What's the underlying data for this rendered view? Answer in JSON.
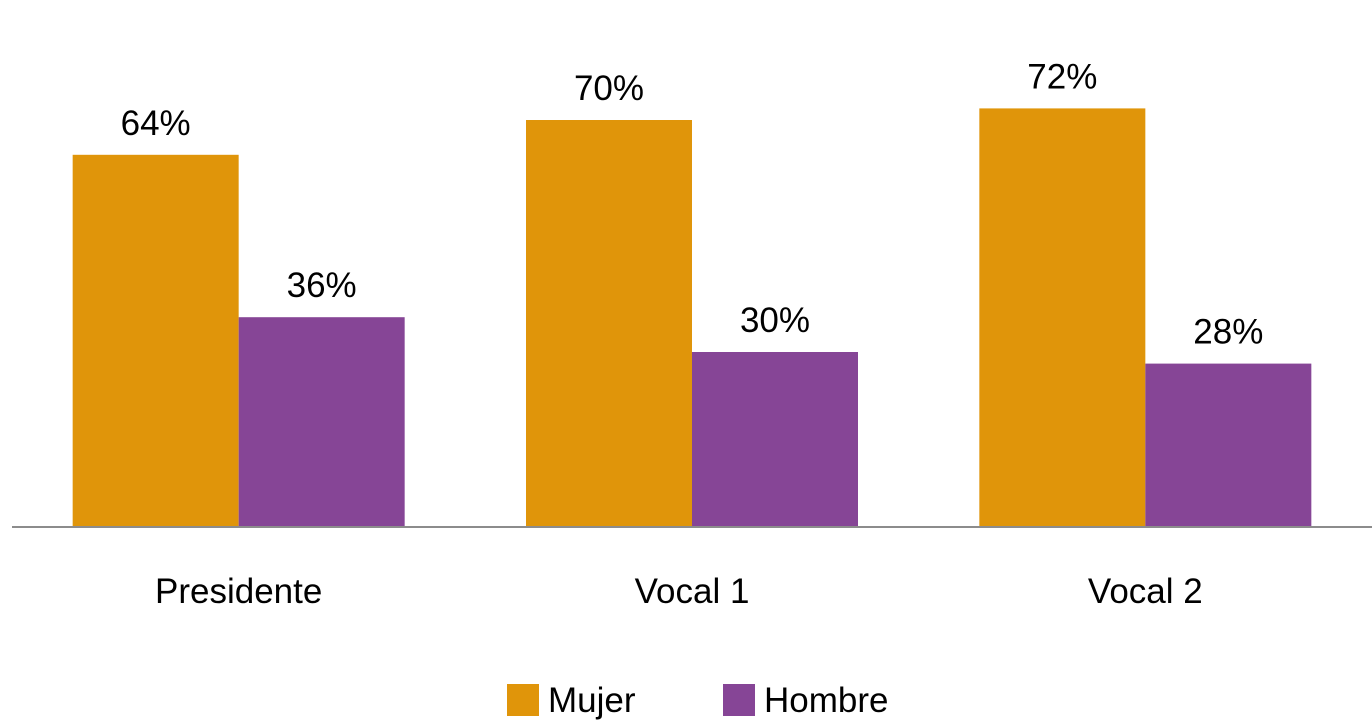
{
  "chart_data": {
    "type": "bar",
    "categories": [
      "Presidente",
      "Vocal 1",
      "Vocal 2"
    ],
    "series": [
      {
        "name": "Mujer",
        "values": [
          64,
          70,
          72
        ],
        "labels": [
          "64%",
          "70%",
          "72%"
        ],
        "color": "#E0950A"
      },
      {
        "name": "Hombre",
        "values": [
          36,
          30,
          28
        ],
        "labels": [
          "36%",
          "30%",
          "28%"
        ],
        "color": "#864596"
      }
    ],
    "value_format": "percent",
    "ylim": [
      0,
      80
    ],
    "grid": false,
    "axis_color": "#8C8C8C",
    "legend_position": "bottom"
  }
}
